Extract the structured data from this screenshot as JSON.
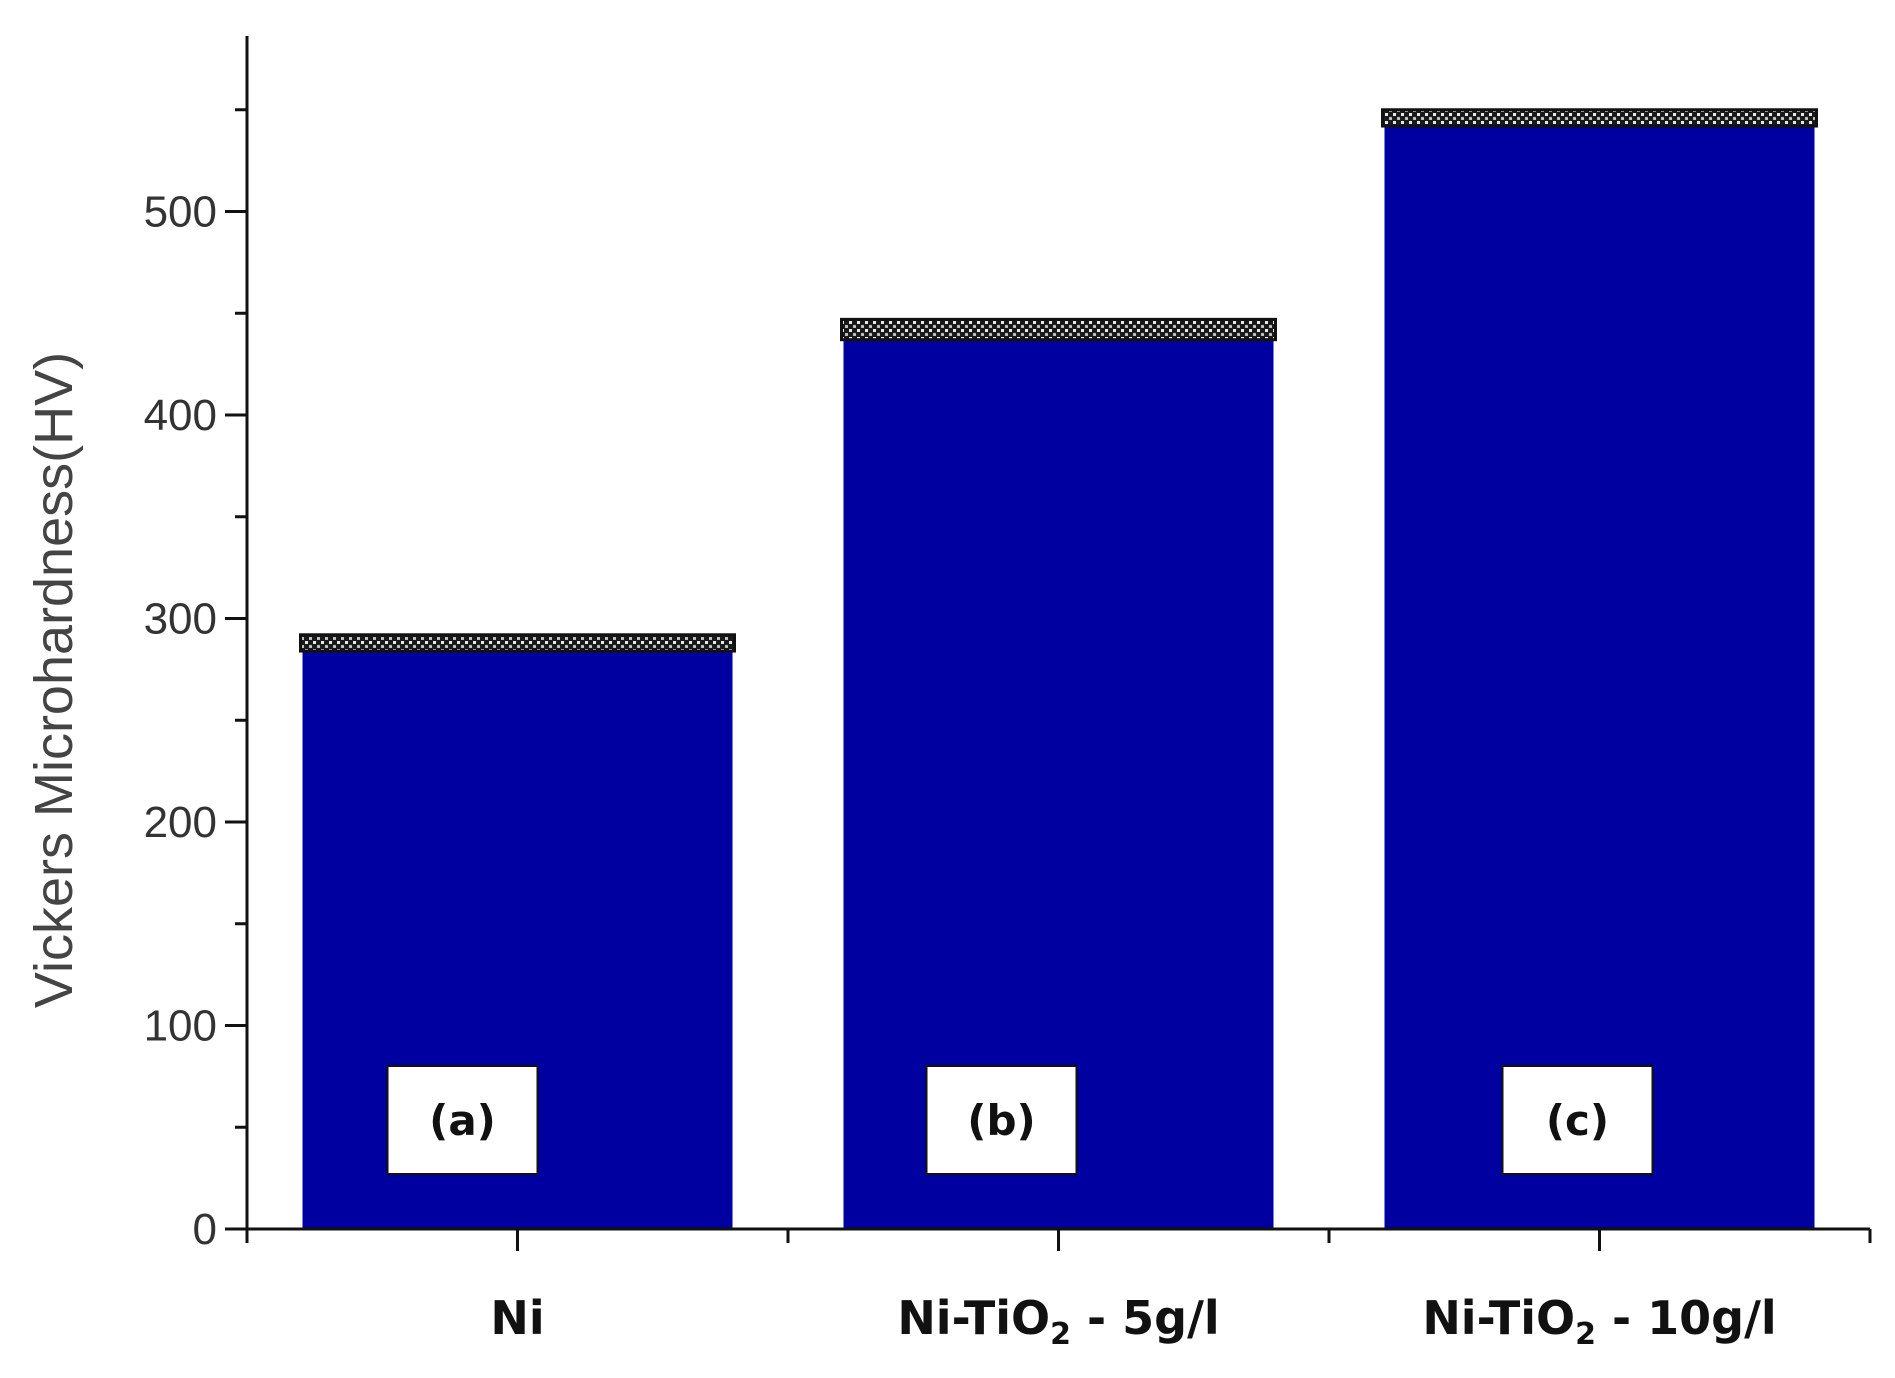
{
  "chart_data": {
    "type": "bar",
    "categories": [
      "Ni",
      "Ni-TiO2 - 5g/l",
      "Ni-TiO2 - 10g/l"
    ],
    "category_labels": [
      {
        "main": "Ni",
        "sub": "",
        "rest": ""
      },
      {
        "main": "Ni-TiO",
        "sub": "2",
        "rest": " - 5g/l"
      },
      {
        "main": "Ni-TiO",
        "sub": "2",
        "rest": " - 10g/l"
      }
    ],
    "values": [
      288,
      442,
      546
    ],
    "error": [
      4,
      5,
      4
    ],
    "bar_labels": [
      "(a)",
      "(b)",
      "(c)"
    ],
    "xlabel": "",
    "ylabel": "Vickers Microhardness(HV)",
    "ylim": [
      0,
      575
    ],
    "y_ticks": [
      0,
      100,
      200,
      300,
      400,
      500
    ],
    "bar_color": "#0000a0",
    "grid": false
  }
}
